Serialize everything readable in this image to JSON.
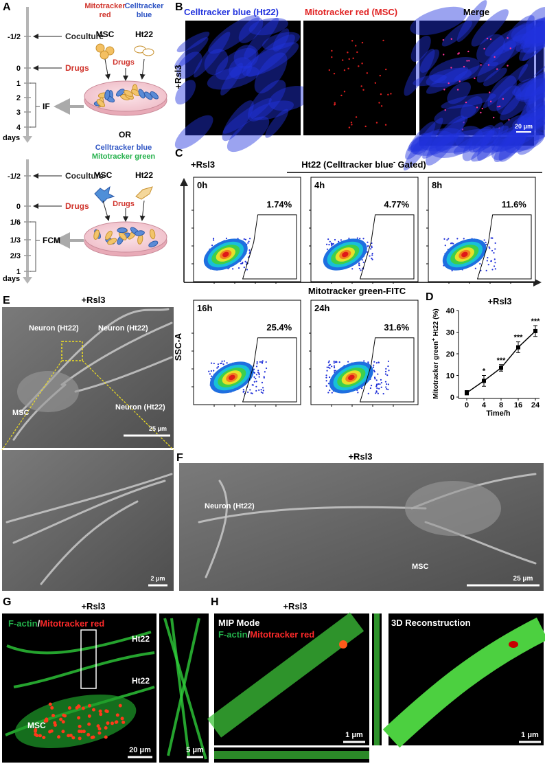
{
  "figure": {
    "panel_labels": [
      "A",
      "B",
      "C",
      "D",
      "E",
      "F",
      "G",
      "H"
    ],
    "a": {
      "top": {
        "dye_msc": "Mitotracker red",
        "dye_ht22": "Celltracker blue",
        "msc": "MSC",
        "ht22": "Ht22",
        "drugs_dish": "Drugs",
        "timeline": [
          {
            "time": "-1/2",
            "event": "Coculture"
          },
          {
            "time": "0",
            "event": "Drugs"
          },
          {
            "time": "1"
          },
          {
            "time": "2"
          },
          {
            "time": "3"
          },
          {
            "time": "4"
          }
        ],
        "readout": "IF",
        "unit": "days"
      },
      "or": "OR",
      "bottom": {
        "dye_1": "Celltracker blue",
        "dye_2": "Mitotracker green",
        "msc": "MSC",
        "ht22": "Ht22",
        "drugs_dish": "Drugs",
        "timeline": [
          {
            "time": "-1/2",
            "event": "Coculture"
          },
          {
            "time": "0",
            "event": "Drugs"
          },
          {
            "time": "1/6"
          },
          {
            "time": "1/3"
          },
          {
            "time": "2/3"
          },
          {
            "time": "1"
          }
        ],
        "readout": "FCM",
        "unit": "days"
      }
    },
    "b": {
      "titles": [
        "Celltracker blue (Ht22)",
        "Mitotracker red (MSC)",
        "Merge"
      ],
      "condition": "+Rsl3",
      "scale": "20 μm"
    },
    "c": {
      "condition": "+Rsl3",
      "gate_title": "Ht22 (Celltracker blue",
      "gate_sup": "-",
      "gate_end": " Gated)",
      "y_axis": "SSC-A",
      "x_axis": "Mitotracker green-FITC",
      "plots": [
        {
          "time": "0h",
          "percent": "1.74%"
        },
        {
          "time": "4h",
          "percent": "4.77%"
        },
        {
          "time": "8h",
          "percent": "11.6%"
        },
        {
          "time": "16h",
          "percent": "25.4%"
        },
        {
          "time": "24h",
          "percent": "31.6%"
        }
      ]
    },
    "e": {
      "condition": "+Rsl3",
      "neurons": [
        "Neuron (Ht22)",
        "Neuron (Ht22)",
        "Neuron (Ht22)"
      ],
      "msc": "MSC",
      "scale_top": "25 μm",
      "scale_bottom": "2 μm"
    },
    "f": {
      "condition": "+Rsl3",
      "neuron": "Neuron (Ht22)",
      "msc": "MSC",
      "scale": "25 μm"
    },
    "g": {
      "condition": "+Rsl3",
      "stain_1": "F-actin",
      "sep": "/",
      "stain_2": "Mitotracker red",
      "ht22": [
        "Ht22",
        "Ht22"
      ],
      "msc": "MSC",
      "scale_main": "20 μm",
      "scale_zoom": "5 μm"
    },
    "h": {
      "condition": "+Rsl3",
      "mode": "MIP Mode",
      "stain_1": "F-actin",
      "sep": "/",
      "stain_2": "Mitotracker red",
      "recon": "3D Reconstruction",
      "scales": [
        "1 μm",
        "1 μm"
      ]
    }
  },
  "chart_data": {
    "type": "line",
    "title": "+Rsl3",
    "x_label": "Time/h",
    "y_label_parts": [
      "Mitotracker green",
      "+",
      " Ht22 (%)"
    ],
    "categories": [
      "0",
      "4",
      "8",
      "16",
      "24"
    ],
    "values": [
      2,
      7.5,
      13.5,
      23,
      30.5
    ],
    "errors": [
      1,
      2.5,
      1.5,
      2.5,
      2.5
    ],
    "significance": [
      null,
      "*",
      "***",
      "***",
      "***"
    ],
    "color": "#000000",
    "ylim": [
      0,
      40
    ],
    "yticks": [
      0,
      10,
      20,
      30,
      40
    ]
  }
}
